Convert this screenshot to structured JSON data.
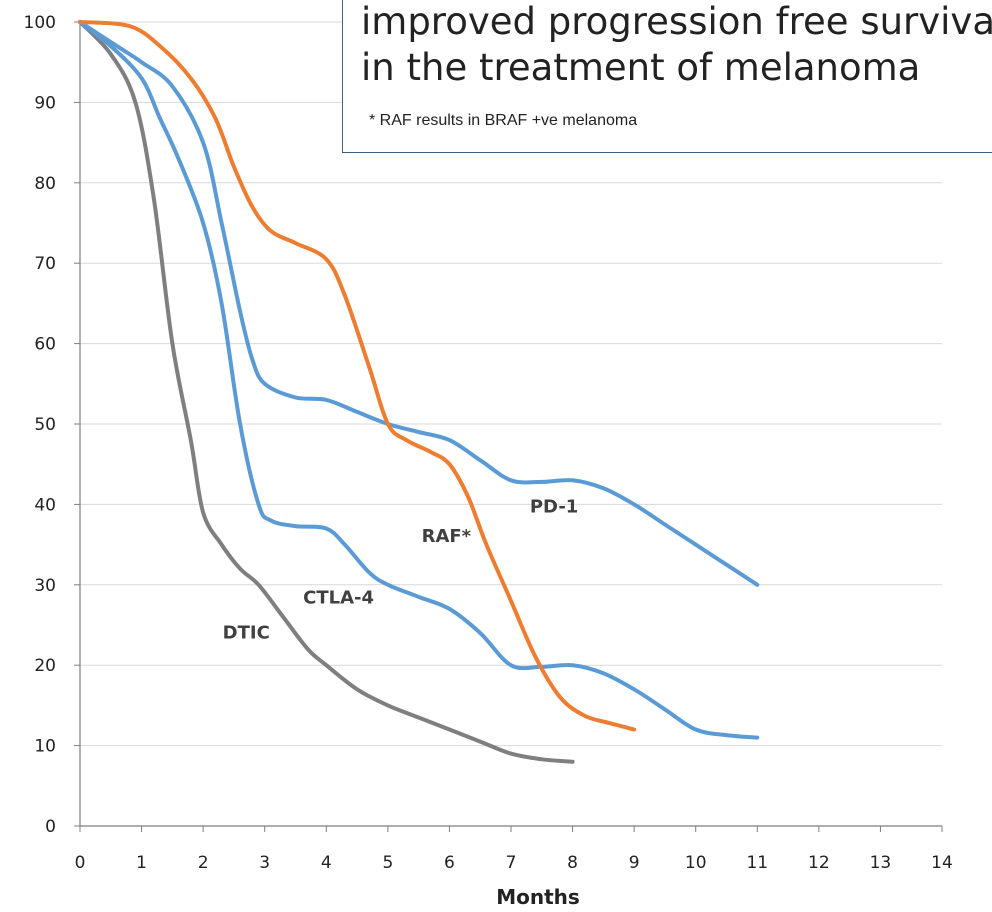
{
  "chart_data": {
    "type": "line",
    "title_lines": [
      "improved progression free survival",
      "in the treatment of melanoma"
    ],
    "footnote": "* RAF results in BRAF +ve melanoma",
    "xlabel": "Months",
    "ylabel": "",
    "xlim": [
      0,
      14
    ],
    "ylim": [
      0,
      100
    ],
    "x_ticks": [
      0,
      1,
      2,
      3,
      4,
      5,
      6,
      7,
      8,
      9,
      10,
      11,
      12,
      13,
      14
    ],
    "y_ticks": [
      0,
      10,
      20,
      30,
      40,
      50,
      60,
      70,
      80,
      90,
      100
    ],
    "grid": "horizontal",
    "series": [
      {
        "name": "DTIC",
        "color": "#7f7f7f",
        "x": [
          0,
          0.5,
          0.9,
          1.2,
          1.5,
          1.8,
          2.0,
          2.3,
          2.6,
          2.9,
          3.3,
          3.7,
          4.0,
          4.5,
          5.0,
          5.5,
          6.0,
          6.5,
          7.0,
          7.5,
          8.0
        ],
        "y": [
          100,
          96,
          90,
          78,
          60,
          48,
          39,
          35,
          32,
          30,
          26,
          22,
          20,
          17,
          15,
          13.5,
          12,
          10.5,
          9,
          8.3,
          8
        ]
      },
      {
        "name": "CTLA-4",
        "color": "#5b9bd5",
        "x": [
          0,
          0.5,
          1.0,
          1.3,
          1.6,
          2.0,
          2.3,
          2.6,
          2.9,
          3.1,
          3.5,
          4.0,
          4.3,
          4.7,
          5.0,
          5.5,
          6.0,
          6.5,
          7.0,
          7.5,
          8.0,
          8.5,
          9.0,
          9.5,
          10.0,
          10.5,
          11.0
        ],
        "y": [
          100,
          97,
          93,
          88,
          83,
          75,
          65,
          50,
          40,
          38,
          37.3,
          37,
          35,
          31.5,
          30,
          28.5,
          27,
          24,
          20,
          19.8,
          20,
          19,
          17,
          14.5,
          12,
          11.3,
          11
        ]
      },
      {
        "name": "PD-1",
        "color": "#5b9bd5",
        "x": [
          0,
          0.6,
          1.0,
          1.5,
          2.0,
          2.3,
          2.6,
          2.8,
          3.0,
          3.5,
          4.0,
          4.5,
          5.0,
          5.5,
          6.0,
          6.5,
          7.0,
          7.5,
          8.0,
          8.5,
          9.0,
          9.5,
          10.0,
          10.5,
          11.0
        ],
        "y": [
          100,
          97,
          95,
          92,
          85,
          75,
          64,
          58,
          55,
          53.3,
          53,
          51.5,
          50,
          49,
          48,
          45.5,
          43,
          42.8,
          43,
          42,
          40,
          37.5,
          35,
          32.5,
          30
        ]
      },
      {
        "name": "RAF*",
        "color": "#ed7d31",
        "x": [
          0,
          0.8,
          1.3,
          1.8,
          2.2,
          2.5,
          2.8,
          3.1,
          3.5,
          4.0,
          4.3,
          4.7,
          5.0,
          5.3,
          5.7,
          6.0,
          6.3,
          6.6,
          7.0,
          7.4,
          7.8,
          8.2,
          8.6,
          9.0
        ],
        "y": [
          100,
          99.5,
          97,
          93,
          88,
          82,
          77,
          74,
          72.5,
          70.5,
          66,
          57,
          50,
          48,
          46.5,
          45,
          41,
          35,
          28,
          21,
          16,
          13.7,
          12.8,
          12
        ]
      }
    ],
    "annotations": [
      {
        "text": "DTIC",
        "x": 2.7,
        "y": 23.3
      },
      {
        "text": "CTLA-4",
        "x": 4.2,
        "y": 27.7
      },
      {
        "text": "RAF*",
        "x": 5.95,
        "y": 35.3
      },
      {
        "text": "PD-1",
        "x": 7.7,
        "y": 39.0
      }
    ]
  }
}
